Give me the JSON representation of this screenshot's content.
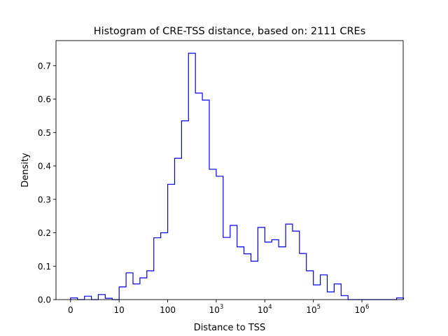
{
  "chart_data": {
    "type": "histogram-step",
    "title": "Histogram of CRE-TSS distance, based on: 2111 CREs",
    "xlabel": "Distance to TSS",
    "ylabel": "Density",
    "xscale": "log10(distance+1)",
    "xlim": [
      -0.3,
      6.85
    ],
    "ylim": [
      0,
      0.775
    ],
    "grid": false,
    "legend": "none",
    "line_color": "#0000ff",
    "yticks": [
      {
        "value": 0.0,
        "label": "0.0"
      },
      {
        "value": 0.1,
        "label": "0.1"
      },
      {
        "value": 0.2,
        "label": "0.2"
      },
      {
        "value": 0.3,
        "label": "0.3"
      },
      {
        "value": 0.4,
        "label": "0.4"
      },
      {
        "value": 0.5,
        "label": "0.5"
      },
      {
        "value": 0.6,
        "label": "0.6"
      },
      {
        "value": 0.7,
        "label": "0.7"
      }
    ],
    "xticks": [
      {
        "value": 0,
        "base": "0",
        "exp": ""
      },
      {
        "value": 1,
        "base": "10",
        "exp": ""
      },
      {
        "value": 2,
        "base": "100",
        "exp": ""
      },
      {
        "value": 3,
        "base": "10",
        "exp": "3"
      },
      {
        "value": 4,
        "base": "10",
        "exp": "4"
      },
      {
        "value": 5,
        "base": "10",
        "exp": "5"
      },
      {
        "value": 6,
        "base": "10",
        "exp": "6"
      }
    ],
    "bin_edges": [
      0.0,
      0.143,
      0.286,
      0.429,
      0.571,
      0.714,
      0.857,
      1.0,
      1.143,
      1.286,
      1.429,
      1.571,
      1.714,
      1.857,
      2.0,
      2.143,
      2.286,
      2.429,
      2.571,
      2.714,
      2.857,
      3.0,
      3.143,
      3.286,
      3.429,
      3.571,
      3.714,
      3.857,
      4.0,
      4.143,
      4.286,
      4.429,
      4.571,
      4.714,
      4.857,
      5.0,
      5.143,
      5.286,
      5.429,
      5.571,
      5.714,
      5.857,
      6.0,
      6.143,
      6.286,
      6.429,
      6.571,
      6.714,
      6.857
    ],
    "values": [
      0.005,
      0.0,
      0.01,
      0.0,
      0.015,
      0.004,
      0.0,
      0.038,
      0.08,
      0.047,
      0.065,
      0.086,
      0.185,
      0.2,
      0.345,
      0.423,
      0.535,
      0.737,
      0.618,
      0.597,
      0.39,
      0.369,
      0.186,
      0.222,
      0.158,
      0.137,
      0.115,
      0.216,
      0.172,
      0.179,
      0.158,
      0.226,
      0.205,
      0.138,
      0.086,
      0.044,
      0.074,
      0.023,
      0.047,
      0.012,
      0.0,
      0.0,
      0.0,
      0.0,
      0.0,
      0.0,
      0.0,
      0.005
    ]
  }
}
